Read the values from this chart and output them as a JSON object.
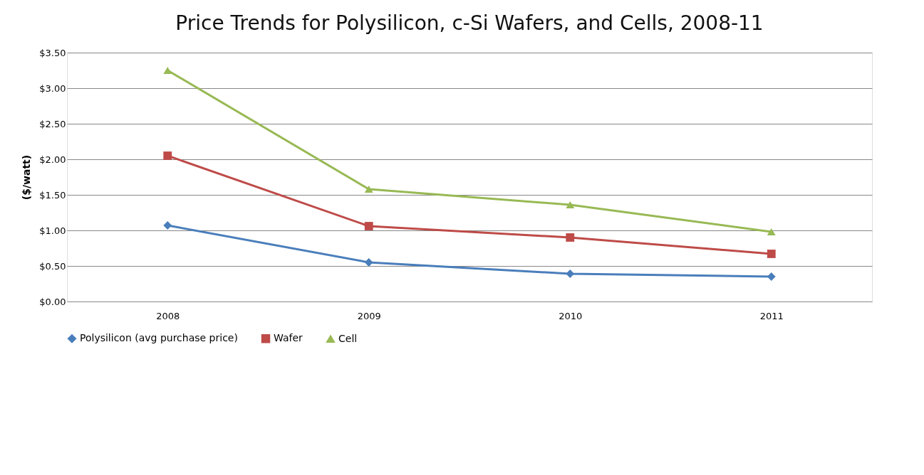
{
  "chart_data": {
    "type": "line",
    "title": "Price Trends for Polysilicon, c-Si Wafers, and Cells, 2008-11",
    "ylabel": "($/watt)",
    "categories": [
      "2008",
      "2009",
      "2010",
      "2011"
    ],
    "series": [
      {
        "name": "Polysilicon (avg purchase price)",
        "color": "#4a7ebb",
        "marker": "diamond",
        "values": [
          1.07,
          0.55,
          0.39,
          0.35
        ]
      },
      {
        "name": "Wafer",
        "color": "#be4b48",
        "marker": "square",
        "values": [
          2.05,
          1.06,
          0.9,
          0.67
        ]
      },
      {
        "name": "Cell",
        "color": "#98b954",
        "marker": "triangle",
        "values": [
          3.25,
          1.58,
          1.36,
          0.98
        ]
      }
    ],
    "ylim": [
      0,
      3.5
    ],
    "yticks": [
      {
        "value": 0,
        "label": "$0.00"
      },
      {
        "value": 0.5,
        "label": "$0.50"
      },
      {
        "value": 1,
        "label": "$1.00"
      },
      {
        "value": 1.5,
        "label": "$1.50"
      },
      {
        "value": 2,
        "label": "$2.00"
      },
      {
        "value": 2.5,
        "label": "$2.50"
      },
      {
        "value": 3,
        "label": "$3.00"
      },
      {
        "value": 3.5,
        "label": "$3.50"
      }
    ],
    "grid": "y",
    "legend": "bottom",
    "line_style": "solid"
  }
}
